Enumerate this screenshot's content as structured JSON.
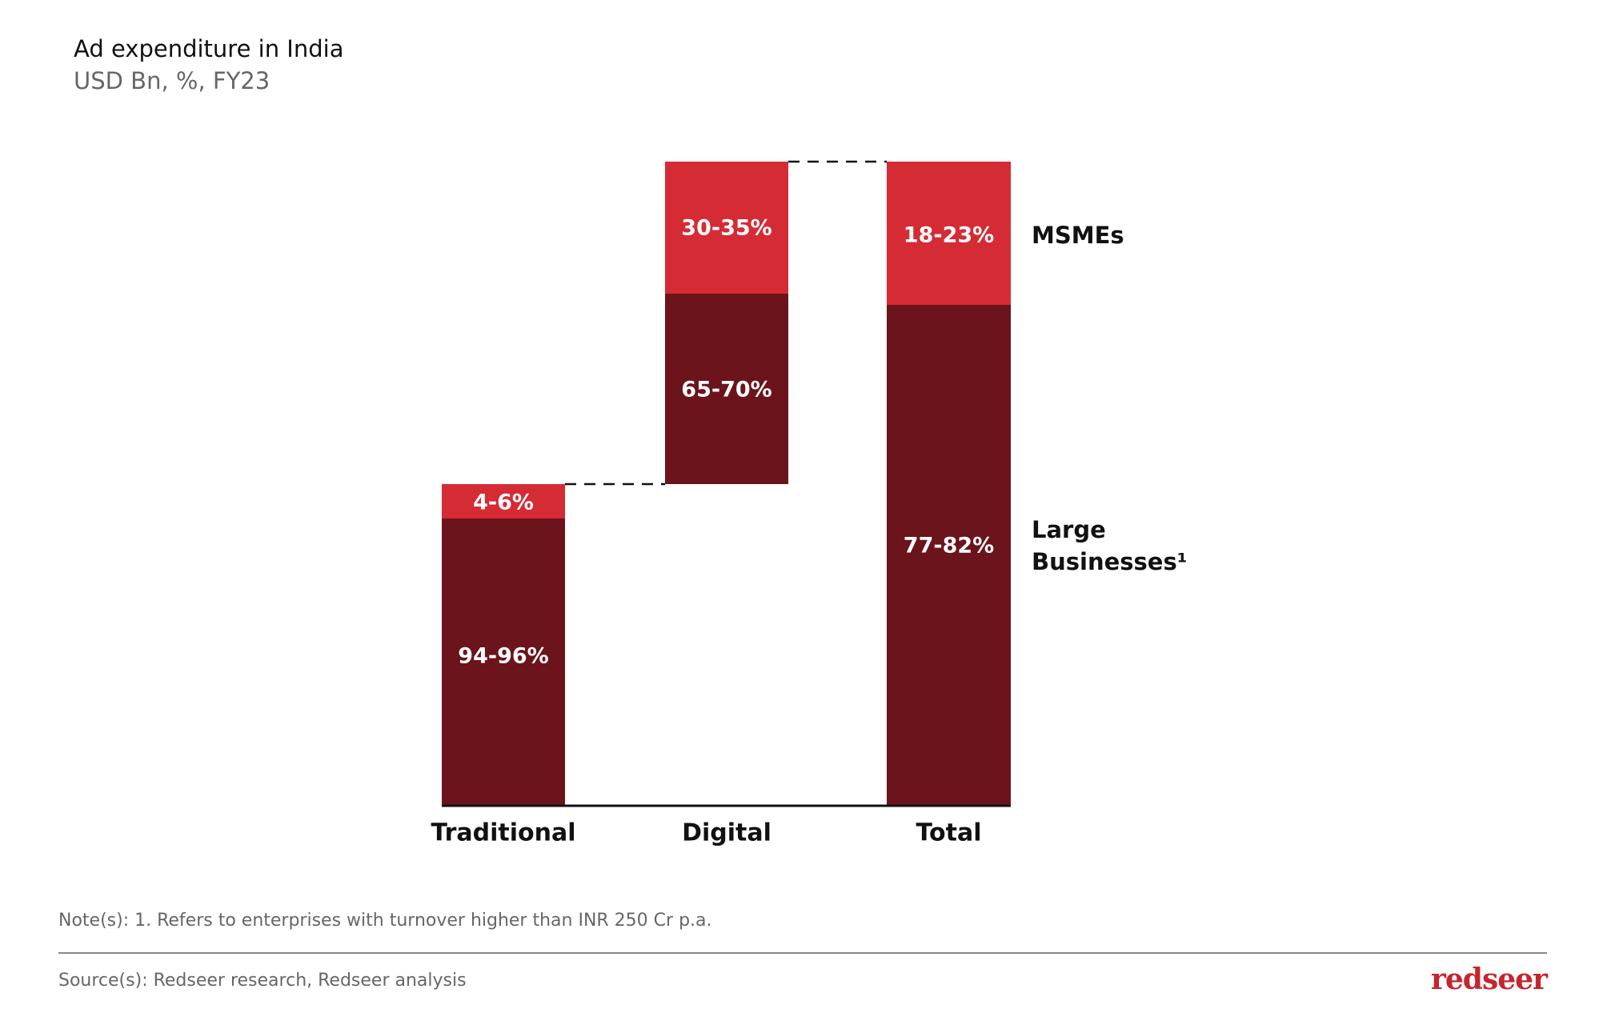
{
  "header": {
    "title": "Ad expenditure in India",
    "subtitle": "USD Bn, %, FY23"
  },
  "chart_data": {
    "type": "bar",
    "subtype": "stacked waterfall",
    "categories": [
      "Traditional",
      "Digital",
      "Total"
    ],
    "series": [
      {
        "name": "MSMEs",
        "values": [
          "4-6%",
          "30-35%",
          "18-23%"
        ],
        "color": "#d52b35"
      },
      {
        "name": "Large Businesses¹",
        "values": [
          "94-96%",
          "65-70%",
          "77-82%"
        ],
        "color": "#6b141b"
      }
    ],
    "legend": "right",
    "grid": false
  },
  "footer": {
    "note": "Note(s): 1. Refers to enterprises with turnover higher than INR 250 Cr p.a.",
    "source": "Source(s): Redseer research, Redseer analysis",
    "logo": "redseer"
  }
}
